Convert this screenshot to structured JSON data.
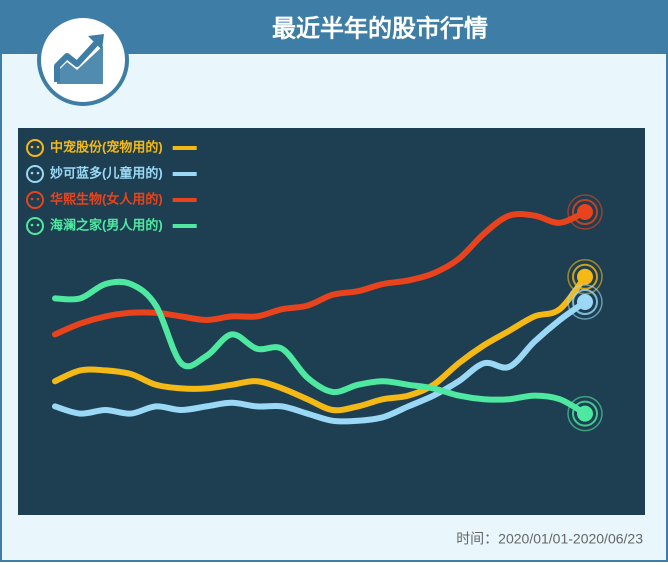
{
  "chart_data": {
    "type": "line",
    "title": "最近半年的股市行情",
    "footnote": "时间：2020/01/01-2020/06/23",
    "categories": [
      null,
      null,
      null,
      null,
      null,
      null,
      null,
      null,
      null,
      null,
      null,
      null,
      null,
      null,
      null,
      null,
      null,
      null,
      null,
      null,
      null,
      null
    ],
    "ylim": [
      0,
      100
    ],
    "legend": "top-left",
    "series": [
      {
        "name": "中宠股份(宠物用的)",
        "color": "#f5b916",
        "values": [
          33,
          36,
          36,
          35,
          32,
          31,
          31,
          32,
          33,
          31,
          28,
          25,
          26,
          28,
          29,
          32,
          38,
          43,
          47,
          51,
          53,
          62
        ]
      },
      {
        "name": "妙可蓝多(儿童用的)",
        "color": "#9ad8f5",
        "values": [
          26,
          24,
          25,
          24,
          26,
          25,
          26,
          27,
          26,
          26,
          24,
          22,
          22,
          23,
          26,
          29,
          33,
          38,
          37,
          44,
          50,
          55
        ]
      },
      {
        "name": "华熙生物(女人用的)",
        "color": "#e8431c",
        "values": [
          46,
          49,
          51,
          52,
          52,
          51,
          50,
          51,
          51,
          53,
          54,
          57,
          58,
          60,
          61,
          63,
          67,
          74,
          79,
          79,
          77,
          80
        ]
      },
      {
        "name": "海澜之家(男人用的)",
        "color": "#4ee8a0",
        "values": [
          56,
          56,
          60,
          60,
          54,
          38,
          40,
          46,
          42,
          42,
          34,
          30,
          32,
          33,
          32,
          31,
          29,
          28,
          28,
          29,
          28,
          24
        ]
      }
    ]
  }
}
